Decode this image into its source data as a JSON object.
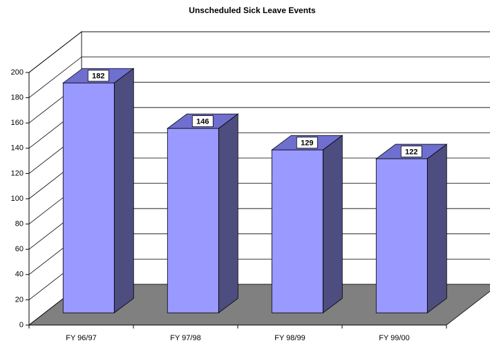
{
  "chart_data": {
    "type": "bar",
    "title": "Unscheduled Sick Leave Events",
    "categories": [
      "FY 96/97",
      "FY 97/98",
      "FY 98/99",
      "FY 99/00"
    ],
    "values": [
      182,
      146,
      129,
      122
    ],
    "color": "#9999ff",
    "ylim": [
      0,
      200
    ],
    "yticks": [
      0,
      20,
      40,
      60,
      80,
      100,
      120,
      140,
      160,
      180,
      200
    ],
    "grid": true
  }
}
